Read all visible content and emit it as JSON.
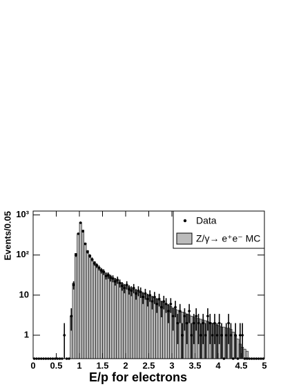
{
  "chart_data": {
    "type": "histogram",
    "xlabel": "E/p for electrons",
    "ylabel": "Events/0.05",
    "log_y": true,
    "legend": "upper right",
    "xlim": [
      0,
      5
    ],
    "ylim": [
      0.26,
      1250
    ],
    "xticks": [
      0,
      0.5,
      1,
      1.5,
      2,
      2.5,
      3,
      3.5,
      4,
      4.5,
      5
    ],
    "yticks": [
      1,
      10,
      {
        "value": 100,
        "label": "10²"
      },
      {
        "value": 1000,
        "label": "10³"
      }
    ],
    "bins": [
      0,
      0.05,
      0.1,
      0.15,
      0.2,
      0.25,
      0.3,
      0.35,
      0.4,
      0.45,
      0.5,
      0.55,
      0.6,
      0.65,
      0.7,
      0.75,
      0.8,
      0.85,
      0.9,
      0.95,
      1,
      1.05,
      1.1,
      1.15,
      1.2,
      1.25,
      1.3,
      1.35,
      1.4,
      1.45,
      1.5,
      1.55,
      1.6,
      1.65,
      1.7,
      1.75,
      1.8,
      1.85,
      1.9,
      1.95,
      2,
      2.05,
      2.1,
      2.15,
      2.2,
      2.25,
      2.3,
      2.35,
      2.4,
      2.45,
      2.5,
      2.55,
      2.6,
      2.65,
      2.7,
      2.75,
      2.8,
      2.85,
      2.9,
      2.95,
      3,
      3.05,
      3.1,
      3.15,
      3.2,
      3.25,
      3.3,
      3.35,
      3.4,
      3.45,
      3.5,
      3.55,
      3.6,
      3.65,
      3.7,
      3.75,
      3.8,
      3.85,
      3.9,
      3.95,
      4,
      4.05,
      4.1,
      4.15,
      4.2,
      4.25,
      4.3,
      4.35,
      4.4,
      4.45,
      4.5,
      4.55,
      4.6,
      4.65,
      4.7,
      4.75,
      4.8,
      4.85,
      4.9,
      4.95,
      5
    ],
    "series": [
      {
        "name": "Z/γ→ e⁺e⁻ MC",
        "color": "#bbbbbb",
        "values": [
          0,
          0,
          0,
          0,
          0,
          0,
          0,
          0,
          0,
          0,
          0,
          0,
          0,
          0,
          0,
          0,
          3,
          20,
          110,
          330,
          650,
          420,
          200,
          130,
          100,
          80,
          68,
          58,
          50,
          44,
          40,
          36,
          33,
          30,
          27,
          25,
          23,
          21,
          19.5,
          18,
          17,
          16,
          15,
          14,
          13,
          12,
          11.5,
          11,
          10.5,
          10,
          9.5,
          9,
          8.5,
          8,
          7.5,
          7,
          6.5,
          6,
          5.6,
          5.2,
          4.8,
          4.5,
          4.2,
          4,
          3.8,
          3.6,
          3.4,
          3.2,
          3,
          2.8,
          2.7,
          2.6,
          2.5,
          2.4,
          2.3,
          2.2,
          2.1,
          2,
          1.9,
          1.8,
          1.7,
          1.6,
          1.6,
          1.5,
          1.5,
          1.4,
          1.2,
          1,
          0.8,
          0.6,
          0.5,
          0.45,
          0.4,
          0,
          0,
          0,
          0,
          0,
          0,
          0
        ]
      },
      {
        "name": "Data",
        "color": "#000000",
        "values": [
          0,
          0,
          0,
          0,
          0,
          0,
          0,
          0,
          0,
          0,
          0,
          0,
          0,
          1,
          0,
          0,
          3,
          18,
          100,
          340,
          640,
          390,
          190,
          120,
          95,
          78,
          62,
          55,
          48,
          41,
          38,
          30,
          31,
          27,
          26,
          22,
          24,
          20,
          17,
          15,
          18,
          14,
          13,
          15,
          11,
          13,
          12,
          9,
          11,
          8,
          10,
          7,
          9,
          6,
          8,
          5,
          7,
          6,
          4,
          6,
          3,
          5,
          2,
          4,
          1,
          3,
          2,
          4,
          1,
          2,
          3,
          2,
          1,
          2,
          1,
          3,
          2,
          1,
          2,
          1,
          2,
          1,
          0,
          1,
          2,
          1,
          0,
          1,
          0,
          1,
          1,
          0,
          0,
          0,
          0,
          0,
          0,
          0,
          0,
          0
        ],
        "errors": [
          0,
          0,
          0,
          0,
          0,
          0,
          0,
          0,
          0,
          0,
          0,
          0,
          0,
          1,
          0,
          0,
          1.7,
          4.2,
          10,
          18,
          25,
          20,
          14,
          11,
          9.7,
          8.8,
          7.9,
          7.4,
          6.9,
          6.4,
          6.2,
          5.5,
          5.6,
          5.2,
          5.1,
          4.7,
          4.9,
          4.5,
          4.1,
          3.9,
          4.2,
          3.7,
          3.6,
          3.9,
          3.3,
          3.6,
          3.5,
          3,
          3.3,
          2.8,
          3.2,
          2.6,
          3,
          2.4,
          2.8,
          2.2,
          2.6,
          2.4,
          2,
          2.4,
          1.7,
          2.2,
          1.4,
          2,
          1,
          1.7,
          1.4,
          2,
          1,
          1.4,
          1.7,
          1.4,
          1,
          1.4,
          1,
          1.7,
          1.4,
          1,
          1.4,
          1,
          1.4,
          1,
          0,
          1,
          1.4,
          1,
          0,
          1,
          0,
          1,
          1,
          0,
          0,
          0,
          0,
          0,
          0,
          0,
          0,
          0
        ]
      }
    ]
  }
}
